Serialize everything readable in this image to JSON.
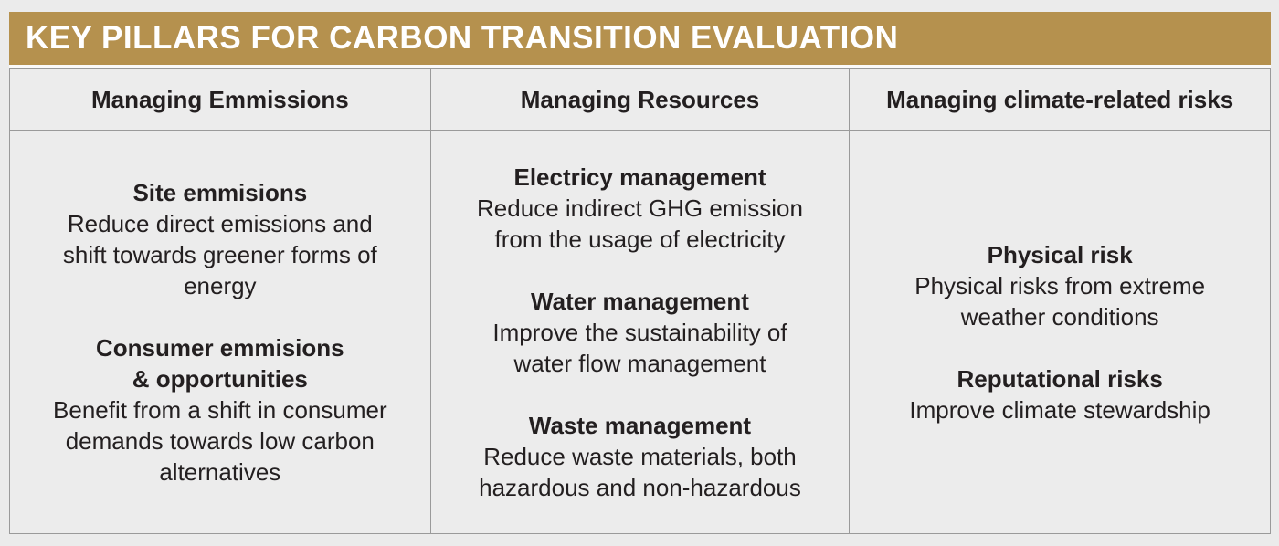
{
  "page": {
    "title": "KEY PILLARS FOR CARBON TRANSITION EVALUATION"
  },
  "colors": {
    "title_bar_bg": "#b5914e",
    "title_text": "#ffffff",
    "cell_bg": "#ececec",
    "page_bg": "#ebebeb",
    "border": "#9a9a9a",
    "body_text": "#231f20"
  },
  "table": {
    "columns": [
      {
        "header": "Managing Emmissions",
        "entries": [
          {
            "title": "Site emmisions",
            "desc": "Reduce direct emissions and\nshift towards greener forms of\nenergy"
          },
          {
            "title": "Consumer emmisions\n& opportunities",
            "desc": "Benefit from a shift in consumer\ndemands towards low carbon\nalternatives"
          }
        ]
      },
      {
        "header": "Managing Resources",
        "entries": [
          {
            "title": "Electricy management",
            "desc": "Reduce indirect GHG emission\nfrom the usage of electricity"
          },
          {
            "title": "Water management",
            "desc": "Improve the sustainability of\nwater flow management"
          },
          {
            "title": "Waste management",
            "desc": "Reduce waste materials, both\nhazardous and non-hazardous"
          }
        ]
      },
      {
        "header": "Managing climate-related risks",
        "entries": [
          {
            "title": "Physical risk",
            "desc": "Physical risks from extreme\nweather conditions"
          },
          {
            "title": "Reputational risks",
            "desc": "Improve climate stewardship"
          }
        ]
      }
    ]
  }
}
